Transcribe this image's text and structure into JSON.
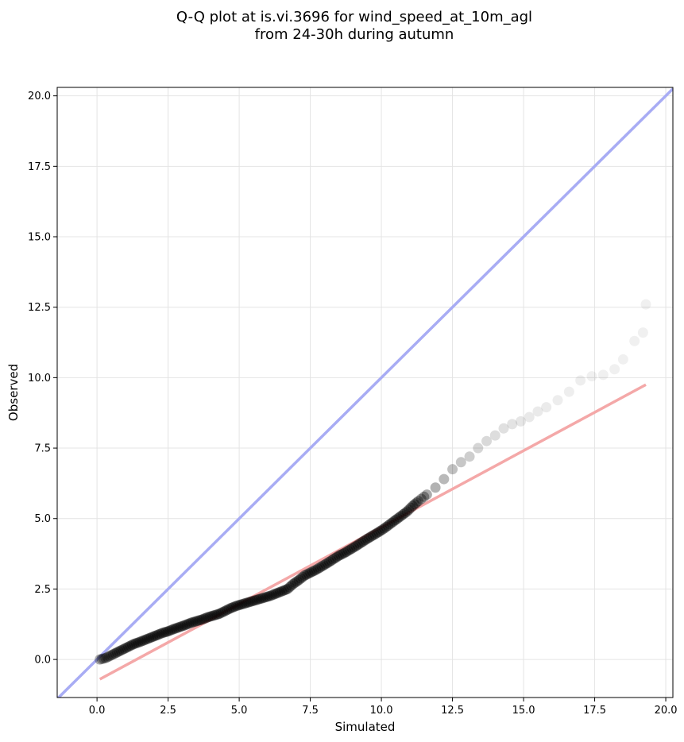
{
  "chart_data": {
    "type": "scatter",
    "title_lines": [
      "Q-Q plot at is.vi.3696 for wind_speed_at_10m_agl",
      "from 24-30h during autumn"
    ],
    "xlabel": "Simulated",
    "ylabel": "Observed",
    "xlim": [
      -1.4,
      20.25
    ],
    "ylim": [
      -1.35,
      20.3
    ],
    "xticks": [
      0.0,
      2.5,
      5.0,
      7.5,
      10.0,
      12.5,
      15.0,
      17.5,
      20.0
    ],
    "xtick_labels": [
      "0.0",
      "2.5",
      "5.0",
      "7.5",
      "10.0",
      "12.5",
      "15.0",
      "17.5",
      "20.0"
    ],
    "yticks": [
      0.0,
      2.5,
      5.0,
      7.5,
      10.0,
      12.5,
      15.0,
      17.5,
      20.0
    ],
    "ytick_labels": [
      "0.0",
      "2.5",
      "5.0",
      "7.5",
      "10.0",
      "12.5",
      "15.0",
      "17.5",
      "20.0"
    ],
    "grid": true,
    "identity_line": {
      "color": "#a8acf4",
      "from": [
        -1.4,
        -1.4
      ],
      "to": [
        20.25,
        20.25
      ]
    },
    "fit_line": {
      "color": "#f4a8a8",
      "from": [
        0.1,
        -0.7
      ],
      "to": [
        19.3,
        9.75
      ]
    },
    "points": {
      "color": "#000000",
      "x": [
        0.1,
        0.3,
        0.5,
        0.7,
        0.9,
        1.1,
        1.3,
        1.5,
        1.7,
        1.9,
        2.1,
        2.3,
        2.5,
        2.7,
        2.9,
        3.1,
        3.3,
        3.5,
        3.7,
        3.9,
        4.1,
        4.3,
        4.5,
        4.7,
        4.9,
        5.1,
        5.3,
        5.5,
        5.7,
        5.9,
        6.1,
        6.3,
        6.5,
        6.7,
        6.9,
        7.1,
        7.3,
        7.5,
        7.7,
        7.9,
        8.1,
        8.3,
        8.5,
        8.7,
        8.9,
        9.1,
        9.3,
        9.5,
        9.7,
        9.9,
        10.1,
        10.3,
        10.5,
        10.7,
        10.9,
        11.1,
        11.3,
        11.6,
        11.9,
        12.2,
        12.5,
        12.8,
        13.1,
        13.4,
        13.7,
        14.0,
        14.3,
        14.6,
        14.9,
        15.2,
        15.5,
        15.8,
        16.2,
        16.6,
        17.0,
        17.4,
        17.8,
        18.2,
        18.5,
        18.9,
        19.2,
        19.3
      ],
      "y": [
        0.0,
        0.05,
        0.15,
        0.25,
        0.35,
        0.45,
        0.55,
        0.62,
        0.7,
        0.78,
        0.86,
        0.94,
        1.0,
        1.08,
        1.15,
        1.22,
        1.3,
        1.36,
        1.42,
        1.5,
        1.56,
        1.62,
        1.72,
        1.82,
        1.9,
        1.96,
        2.02,
        2.08,
        2.14,
        2.2,
        2.26,
        2.34,
        2.42,
        2.5,
        2.68,
        2.82,
        2.98,
        3.08,
        3.18,
        3.3,
        3.42,
        3.55,
        3.68,
        3.78,
        3.9,
        4.02,
        4.15,
        4.28,
        4.4,
        4.52,
        4.65,
        4.8,
        4.95,
        5.1,
        5.25,
        5.45,
        5.62,
        5.85,
        6.1,
        6.4,
        6.75,
        7.0,
        7.2,
        7.5,
        7.75,
        7.95,
        8.2,
        8.35,
        8.45,
        8.6,
        8.8,
        8.95,
        9.2,
        9.5,
        9.9,
        10.05,
        10.1,
        10.3,
        10.65,
        11.3,
        11.6,
        12.6
      ],
      "opacity": [
        0.55,
        0.6,
        0.65,
        0.7,
        0.7,
        0.72,
        0.72,
        0.72,
        0.72,
        0.72,
        0.72,
        0.72,
        0.72,
        0.72,
        0.72,
        0.72,
        0.72,
        0.72,
        0.72,
        0.72,
        0.72,
        0.72,
        0.72,
        0.72,
        0.72,
        0.72,
        0.72,
        0.72,
        0.72,
        0.72,
        0.72,
        0.72,
        0.72,
        0.72,
        0.72,
        0.72,
        0.72,
        0.72,
        0.72,
        0.72,
        0.72,
        0.72,
        0.72,
        0.72,
        0.72,
        0.72,
        0.72,
        0.72,
        0.72,
        0.72,
        0.72,
        0.72,
        0.72,
        0.72,
        0.72,
        0.7,
        0.65,
        0.6,
        0.55,
        0.5,
        0.45,
        0.4,
        0.35,
        0.3,
        0.27,
        0.24,
        0.22,
        0.2,
        0.18,
        0.16,
        0.15,
        0.14,
        0.13,
        0.12,
        0.12,
        0.11,
        0.11,
        0.11,
        0.11,
        0.11,
        0.11,
        0.11
      ]
    }
  }
}
